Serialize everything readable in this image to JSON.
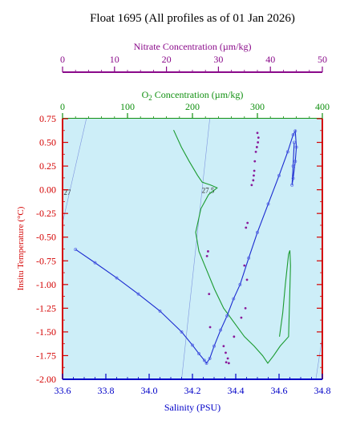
{
  "chart_data": {
    "type": "scatter",
    "title": "Float 1695  (All profiles as of 01 Jan 2026)",
    "axes": {
      "salinity": {
        "label": "Salinity (PSU)",
        "range": [
          33.6,
          34.8
        ],
        "ticks": [
          33.6,
          33.8,
          34.0,
          34.2,
          34.4,
          34.6,
          34.8
        ],
        "tick_labels": [
          "33.6",
          "33.8",
          "34.0",
          "34.2",
          "34.4",
          "34.6",
          "34.8"
        ],
        "color": "#0000c8"
      },
      "temperature": {
        "label": "Insitu Temperature (°C)",
        "range": [
          -2.0,
          0.75
        ],
        "ticks": [
          0.75,
          0.5,
          0.25,
          0.0,
          -0.25,
          -0.5,
          -0.75,
          -1.0,
          -1.25,
          -1.5,
          -1.75,
          -2.0
        ],
        "tick_labels": [
          "0.75",
          "0.50",
          "0.25",
          "0.00",
          "-0.25",
          "-0.50",
          "-0.75",
          "-1.00",
          "-1.25",
          "-1.50",
          "-1.75",
          "-2.00"
        ],
        "color": "#d40000"
      },
      "oxygen": {
        "label": "O2 Concentration (µm/kg)",
        "label_main": "O",
        "label_sub": "2",
        "label_rest": " Concentration (µm/kg)",
        "range": [
          0,
          400
        ],
        "ticks": [
          0,
          100,
          200,
          300,
          400
        ],
        "tick_labels": [
          "0",
          "100",
          "200",
          "300",
          "400"
        ],
        "color": "#109010"
      },
      "nitrate": {
        "label": "Nitrate Concentration (µm/kg)",
        "range": [
          0,
          50
        ],
        "ticks": [
          0,
          10,
          20,
          30,
          40,
          50
        ],
        "tick_labels": [
          "0",
          "10",
          "20",
          "30",
          "40",
          "50"
        ],
        "color": "#8a0a8a"
      }
    },
    "isopycnals": [
      {
        "label": "27",
        "points": [
          [
            33.6,
            -0.35
          ],
          [
            33.71,
            0.75
          ]
        ]
      },
      {
        "label": "27.5",
        "points": [
          [
            34.15,
            -2.0
          ],
          [
            34.28,
            0.75
          ]
        ]
      },
      {
        "label": "",
        "points": [
          [
            34.77,
            -2.0
          ],
          [
            34.8,
            -1.55
          ]
        ]
      }
    ],
    "series": [
      {
        "type": "salinity",
        "color": "#1a2ad0",
        "points": [
          [
            33.66,
            -0.63
          ],
          [
            33.75,
            -0.77
          ],
          [
            33.85,
            -0.93
          ],
          [
            33.95,
            -1.1
          ],
          [
            34.05,
            -1.28
          ],
          [
            34.15,
            -1.5
          ],
          [
            34.2,
            -1.64
          ],
          [
            34.23,
            -1.73
          ],
          [
            34.255,
            -1.8
          ],
          [
            34.265,
            -1.83
          ],
          [
            34.28,
            -1.78
          ],
          [
            34.3,
            -1.65
          ],
          [
            34.33,
            -1.48
          ],
          [
            34.36,
            -1.33
          ],
          [
            34.39,
            -1.15
          ],
          [
            34.42,
            -1.0
          ],
          [
            34.46,
            -0.72
          ],
          [
            34.5,
            -0.45
          ],
          [
            34.55,
            -0.15
          ],
          [
            34.6,
            0.15
          ],
          [
            34.64,
            0.4
          ],
          [
            34.665,
            0.58
          ],
          [
            34.675,
            0.62
          ],
          [
            34.68,
            0.45
          ],
          [
            34.675,
            0.3
          ],
          [
            34.665,
            0.12
          ],
          [
            34.66,
            0.05
          ],
          [
            34.665,
            0.25
          ],
          [
            34.67,
            0.5
          ]
        ]
      },
      {
        "type": "oxygen",
        "color": "#1b9b30",
        "points": [
          [
            171,
            0.63
          ],
          [
            183,
            0.45
          ],
          [
            195,
            0.3
          ],
          [
            208,
            0.15
          ],
          [
            215,
            0.08
          ],
          [
            228,
            0.05
          ],
          [
            238,
            0.02
          ],
          [
            225,
            -0.05
          ],
          [
            213,
            -0.2
          ],
          [
            205,
            -0.45
          ],
          [
            210,
            -0.65
          ],
          [
            222,
            -0.85
          ],
          [
            234,
            -1.05
          ],
          [
            248,
            -1.25
          ],
          [
            264,
            -1.4
          ],
          [
            280,
            -1.55
          ],
          [
            295,
            -1.65
          ],
          [
            308,
            -1.75
          ],
          [
            316,
            -1.83
          ],
          [
            325,
            -1.75
          ],
          [
            335,
            -1.65
          ],
          [
            348,
            -1.55
          ],
          [
            351,
            -0.8
          ],
          [
            350,
            -0.64
          ],
          [
            348,
            -0.68
          ],
          [
            343,
            -1.0
          ],
          [
            339,
            -1.3
          ],
          [
            334,
            -1.55
          ]
        ]
      },
      {
        "type": "nitrate",
        "color": "#8a1a9a",
        "points": [
          [
            37.5,
            0.6
          ],
          [
            37.7,
            0.55
          ],
          [
            37.6,
            0.5
          ],
          [
            37.4,
            0.45
          ],
          [
            37.2,
            0.4
          ],
          [
            37.0,
            0.3
          ],
          [
            36.9,
            0.2
          ],
          [
            36.8,
            0.15
          ],
          [
            36.7,
            0.1
          ],
          [
            36.4,
            0.05
          ],
          [
            35.6,
            -0.35
          ],
          [
            35.3,
            -0.4
          ],
          [
            28.0,
            -0.65
          ],
          [
            27.8,
            -0.7
          ],
          [
            35.0,
            -0.8
          ],
          [
            35.5,
            -0.95
          ],
          [
            28.2,
            -1.1
          ],
          [
            35.2,
            -1.25
          ],
          [
            34.4,
            -1.35
          ],
          [
            28.4,
            -1.45
          ],
          [
            33.0,
            -1.55
          ],
          [
            31.0,
            -1.65
          ],
          [
            31.4,
            -1.72
          ],
          [
            31.8,
            -1.78
          ],
          [
            31.5,
            -1.82
          ],
          [
            32.0,
            -1.83
          ]
        ]
      }
    ],
    "background_color": "#cdeef8",
    "grid": false,
    "legend": "none"
  }
}
